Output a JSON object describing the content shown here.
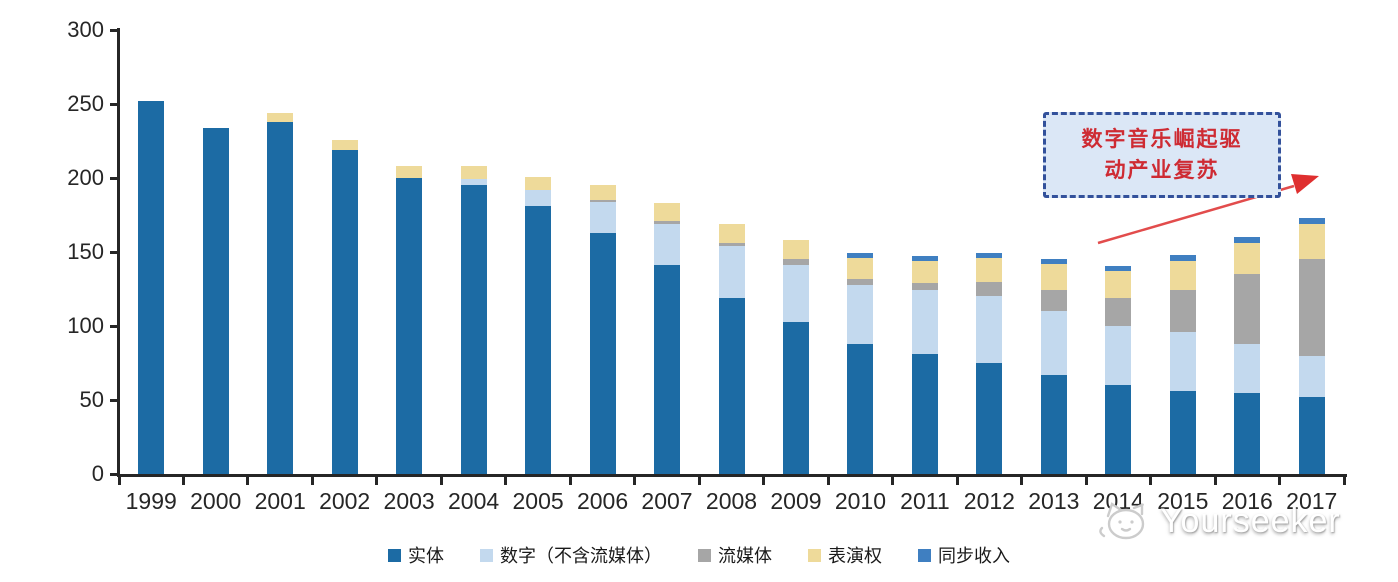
{
  "chart_data": {
    "type": "bar",
    "stacked": true,
    "title": "",
    "xlabel": "",
    "ylabel": "",
    "ylim": [
      0,
      300
    ],
    "y_ticks": [
      0,
      50,
      100,
      150,
      200,
      250,
      300
    ],
    "grid": false,
    "legend_position": "bottom",
    "categories": [
      "1999",
      "2000",
      "2001",
      "2002",
      "2003",
      "2004",
      "2005",
      "2006",
      "2007",
      "2008",
      "2009",
      "2010",
      "2011",
      "2012",
      "2013",
      "2014",
      "2015",
      "2016",
      "2017"
    ],
    "series": [
      {
        "name": "实体",
        "color": "#1c6ba4",
        "values": [
          252,
          234,
          238,
          219,
          200,
          195,
          181,
          163,
          141,
          119,
          103,
          88,
          81,
          75,
          67,
          60,
          56,
          55,
          52
        ]
      },
      {
        "name": "数字（不含流媒体）",
        "color": "#c3d9ee",
        "values": [
          0,
          0,
          0,
          0,
          0,
          4,
          11,
          21,
          28,
          35,
          38,
          40,
          43,
          45,
          43,
          40,
          40,
          33,
          28
        ]
      },
      {
        "name": "流媒体",
        "color": "#a6a6a6",
        "values": [
          0,
          0,
          0,
          0,
          0,
          0,
          0,
          1,
          2,
          2,
          4,
          4,
          5,
          10,
          14,
          19,
          28,
          47,
          65
        ]
      },
      {
        "name": "表演权",
        "color": "#eeda9a",
        "values": [
          0,
          0,
          6,
          7,
          8,
          9,
          9,
          10,
          12,
          13,
          13,
          14,
          15,
          16,
          18,
          18,
          20,
          21,
          24
        ]
      },
      {
        "name": "同步收入",
        "color": "#3f7fc1",
        "values": [
          0,
          0,
          0,
          0,
          0,
          0,
          0,
          0,
          0,
          0,
          0,
          3,
          3,
          3,
          3,
          3.5,
          4,
          4,
          4
        ]
      }
    ]
  },
  "annotation": {
    "line1": "数字音乐崛起驱",
    "line2": "动产业复苏",
    "text_color": "#ce2b33",
    "box_fill": "#dbe7f6",
    "box_border": "#33519b",
    "arrow_color": "#e24c4c"
  },
  "watermark": {
    "text": "Yourseeker"
  }
}
